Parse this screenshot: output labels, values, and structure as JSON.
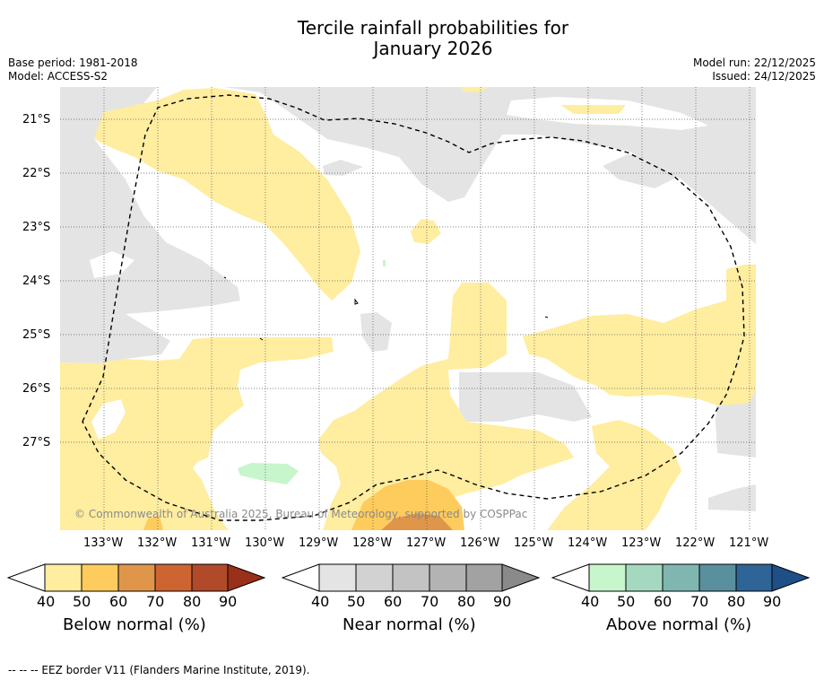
{
  "title_line1": "Tercile rainfall probabilities for",
  "title_line2": "January 2026",
  "base_period": "Base period: 1981-2018",
  "model": "Model: ACCESS-S2",
  "model_run": "Model run: 22/12/2025",
  "issued": "Issued: 24/12/2025",
  "lat_labels": [
    "21°S",
    "22°S",
    "23°S",
    "24°S",
    "25°S",
    "26°S",
    "27°S"
  ],
  "lon_labels": [
    "133°W",
    "132°W",
    "131°W",
    "130°W",
    "129°W",
    "128°W",
    "127°W",
    "126°W",
    "125°W",
    "124°W",
    "123°W",
    "122°W",
    "121°W"
  ],
  "copyright": "© Commonwealth of Australia 2025, Bureau of Meteorology, supported by COSPPac",
  "colorbars": [
    {
      "title": "Below normal (%)",
      "ticks": [
        "40",
        "50",
        "60",
        "70",
        "80",
        "90"
      ],
      "colors": [
        "#ffeda0",
        "#fecc5c",
        "#e0964a",
        "#cd6432",
        "#b04a28",
        "#9a2f1a"
      ]
    },
    {
      "title": "Near normal (%)",
      "ticks": [
        "40",
        "50",
        "60",
        "70",
        "80",
        "90"
      ],
      "colors": [
        "#e4e4e4",
        "#d2d2d2",
        "#c3c3c3",
        "#b3b3b3",
        "#a2a2a2",
        "#8a8a8a"
      ]
    },
    {
      "title": "Above normal (%)",
      "ticks": [
        "40",
        "50",
        "60",
        "70",
        "80",
        "90"
      ],
      "colors": [
        "#c7f5cc",
        "#a4d9c0",
        "#7fb6b0",
        "#5a8f9e",
        "#2f6496",
        "#1e4f87"
      ]
    }
  ],
  "footer": "--  --  -- EEZ border V11 (Flanders Marine Institute, 2019).",
  "palette": {
    "below_40": "#ffeda0",
    "below_50": "#fecc5c",
    "below_60": "#e0964a",
    "near_40": "#e4e4e4",
    "near_50": "#d2d2d2",
    "above_40": "#c7f5cc"
  }
}
